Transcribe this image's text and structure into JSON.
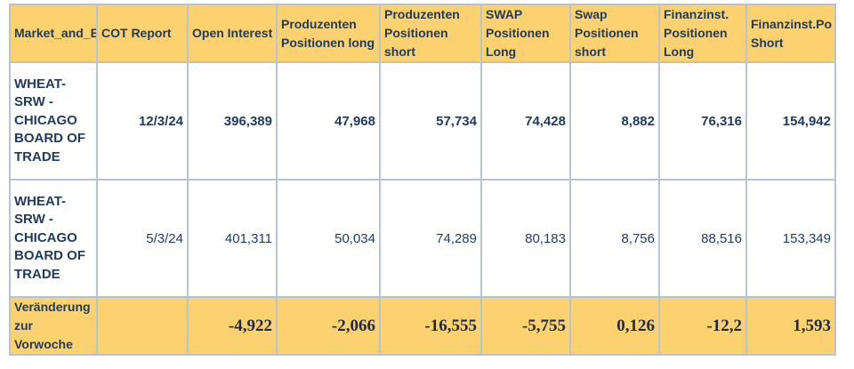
{
  "headers": [
    "Market_and_E",
    "COT Report",
    "Open Interest",
    "Produzenten Positionen long",
    "Produzenten Positionen short",
    "SWAP Positionen Long",
    "Swap Positionen short",
    "Finanzinst. Positionen Long",
    "Finanzinst.Po Short"
  ],
  "rows": [
    {
      "market": "WHEAT-SRW - CHICAGO BOARD OF TRADE",
      "date": "12/3/24",
      "open_interest": "396,389",
      "prod_long": "47,968",
      "prod_short": "57,734",
      "swap_long": "74,428",
      "swap_short": "8,882",
      "fin_long": "76,316",
      "fin_short": "154,942"
    },
    {
      "market": "WHEAT-SRW - CHICAGO BOARD OF TRADE",
      "date": "5/3/24",
      "open_interest": "401,311",
      "prod_long": "50,034",
      "prod_short": "74,289",
      "swap_long": "80,183",
      "swap_short": "8,756",
      "fin_long": "88,516",
      "fin_short": "153,349"
    }
  ],
  "change": {
    "label": "Veränderung zur Vorwoche",
    "date": "",
    "open_interest": "-4,922",
    "prod_long": "-2,066",
    "prod_short": "-16,555",
    "swap_long": "-5,755",
    "swap_short": "0,126",
    "fin_long": "-12,2",
    "fin_short": "1,593"
  },
  "colors": {
    "header_bg": "#fcd271",
    "text": "#1f3a5f",
    "border": "#b9c2cf"
  }
}
